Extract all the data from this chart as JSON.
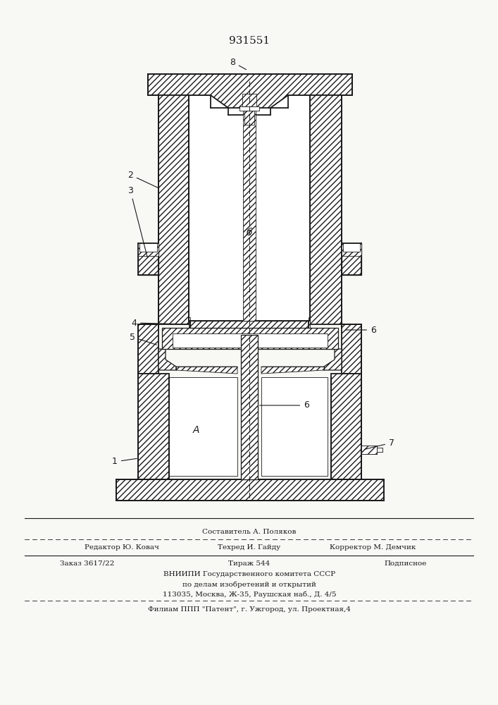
{
  "title": "931551",
  "bg_color": "#f8f8f5",
  "line_color": "#1a1a1a",
  "footer": {
    "line1_left": "Редактор Ю. Ковач",
    "line1_center": "Техред И. Гайду",
    "line1_right": "Корректор М. Демчик",
    "line0_center": "Составитель А. Поляков",
    "line2_left": "Заказ 3617/22",
    "line2_center": "Тираж 544",
    "line2_right": "Подписное",
    "line3": "ВНИИПИ Государственного комитета СССР",
    "line4": "по делам изобретений и открытий",
    "line5": "113035, Москва, Ж-35, Раушская наб., Д. 4/5",
    "line6": "Филиам ППП \"Патент\", г. Ужгород, ул. Проектная,4"
  }
}
